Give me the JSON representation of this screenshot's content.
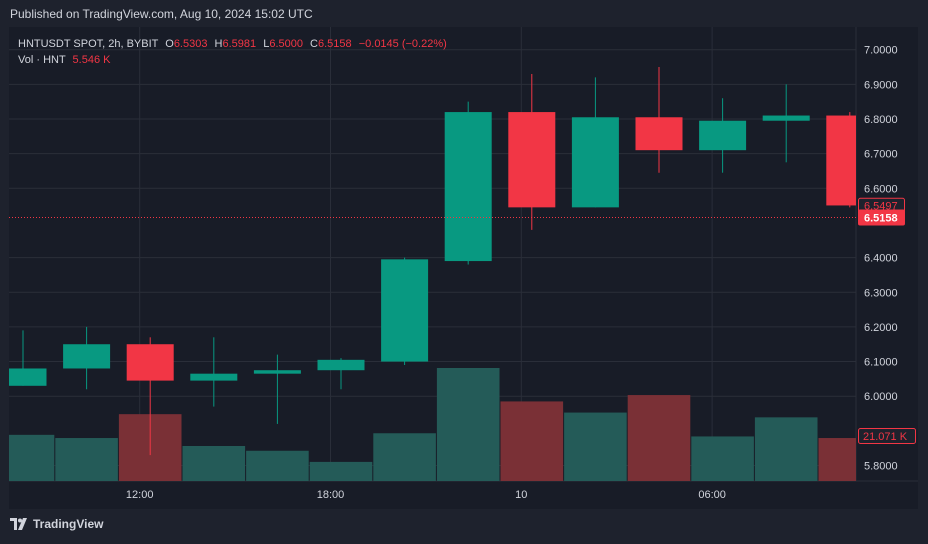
{
  "header": {
    "published": "Published on TradingView.com, Aug 10, 2024 15:02 UTC"
  },
  "legend": {
    "symbol": "HNTUSDT SPOT, 2h, BYBIT",
    "o_label": "O",
    "o_value": "6.5303",
    "h_label": "H",
    "h_value": "6.5981",
    "l_label": "L",
    "l_value": "6.5000",
    "c_label": "C",
    "c_value": "6.5158",
    "change": "−0.0145 (−0.22%)",
    "vol_label": "Vol · HNT",
    "vol_value": "5.546 K"
  },
  "footer": {
    "logo_text": "TradingView",
    "logo_icon": "tradingview-logo-icon"
  },
  "colors": {
    "background": "#1e222d",
    "plot_bg": "#181c27",
    "grid": "#2a2e39",
    "up": "#089981",
    "down": "#f23645",
    "vol_up": "#245b58",
    "vol_down": "#7a3036",
    "text": "#d1d4dc"
  },
  "chart_data": {
    "type": "candlestick",
    "y_ticks": [
      "7.0000",
      "6.9000",
      "6.8000",
      "6.7000",
      "6.6000",
      "6.4000",
      "6.3000",
      "6.2000",
      "6.1000",
      "6.0000",
      "5.8000"
    ],
    "ylim": [
      5.75,
      7.03
    ],
    "x_ticks": [
      {
        "label": "12:00",
        "index": 2
      },
      {
        "label": "18:00",
        "index": 5
      },
      {
        "label": "10",
        "index": 8
      },
      {
        "label": "06:00",
        "index": 11
      }
    ],
    "candles": [
      {
        "open": 6.03,
        "high": 6.19,
        "low": 6.03,
        "close": 6.08
      },
      {
        "open": 6.08,
        "high": 6.2,
        "low": 6.02,
        "close": 6.15
      },
      {
        "open": 6.15,
        "high": 6.17,
        "low": 5.83,
        "close": 6.045
      },
      {
        "open": 6.045,
        "high": 6.17,
        "low": 5.97,
        "close": 6.065
      },
      {
        "open": 6.065,
        "high": 6.12,
        "low": 5.92,
        "close": 6.075
      },
      {
        "open": 6.075,
        "high": 6.11,
        "low": 6.02,
        "close": 6.105
      },
      {
        "open": 6.1,
        "high": 6.4,
        "low": 6.09,
        "close": 6.395
      },
      {
        "open": 6.39,
        "high": 6.85,
        "low": 6.38,
        "close": 6.82
      },
      {
        "open": 6.82,
        "high": 6.93,
        "low": 6.48,
        "close": 6.545
      },
      {
        "open": 6.545,
        "high": 6.92,
        "low": 6.545,
        "close": 6.805
      },
      {
        "open": 6.805,
        "high": 6.95,
        "low": 6.645,
        "close": 6.71
      },
      {
        "open": 6.71,
        "high": 6.86,
        "low": 6.645,
        "close": 6.795
      },
      {
        "open": 6.795,
        "high": 6.9,
        "low": 6.675,
        "close": 6.81
      },
      {
        "open": 6.81,
        "high": 6.82,
        "low": 6.545,
        "close": 6.5505
      }
    ],
    "volume": {
      "unit": "K",
      "values": [
        29,
        27,
        42,
        22,
        19,
        12,
        30,
        71,
        50,
        43,
        54,
        28,
        40,
        27
      ]
    },
    "price_labels": [
      {
        "value": 6.5497,
        "text": "6.5497",
        "style": "outline"
      },
      {
        "value": 6.5158,
        "text": "6.5158",
        "style": "filled",
        "dotted_line": true
      }
    ],
    "volume_label": {
      "text": "21.071 K"
    }
  }
}
